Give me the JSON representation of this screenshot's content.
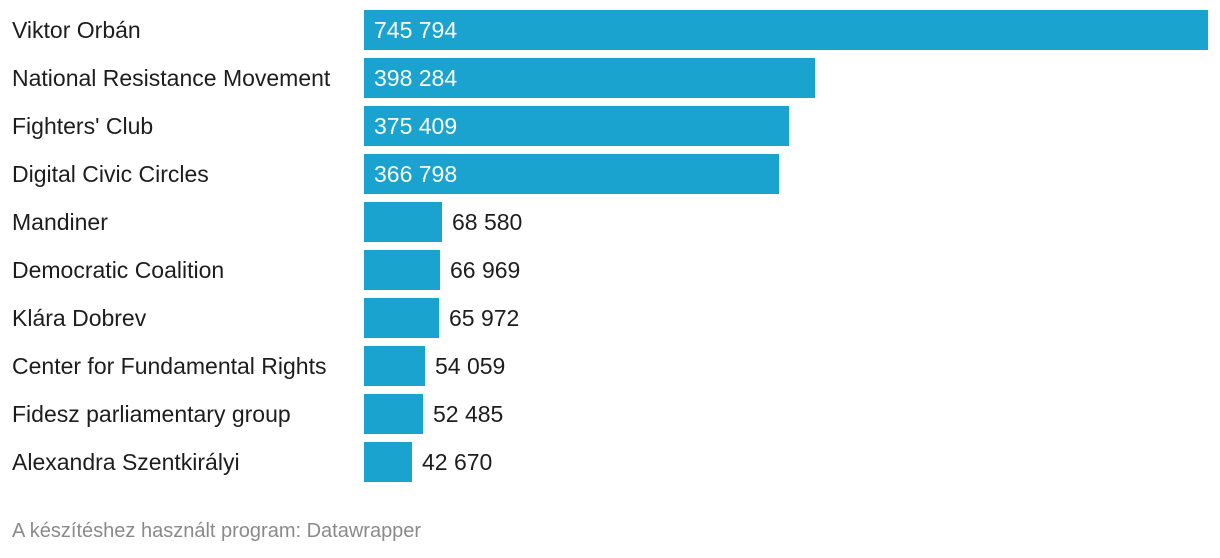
{
  "chart_data": {
    "type": "bar",
    "orientation": "horizontal",
    "categories": [
      "Viktor Orbán",
      "National Resistance Movement",
      "Fighters' Club",
      "Digital Civic Circles",
      "Mandiner",
      "Democratic Coalition",
      "Klára Dobrev",
      "Center for Fundamental Rights",
      "Fidesz parliamentary group",
      "Alexandra Szentkirályi"
    ],
    "values": [
      745794,
      398284,
      375409,
      366798,
      68580,
      66969,
      65972,
      54059,
      52485,
      42670
    ],
    "value_labels": [
      "745 794",
      "398 284",
      "375 409",
      "366 798",
      "68 580",
      "66 969",
      "65 972",
      "54 059",
      "52 485",
      "42 670"
    ],
    "bar_color": "#1ba3cf",
    "xlim": [
      0,
      745794
    ],
    "grid": false,
    "legend": "none"
  },
  "footer": {
    "source_text": "A készítéshez használt program: Datawrapper"
  }
}
